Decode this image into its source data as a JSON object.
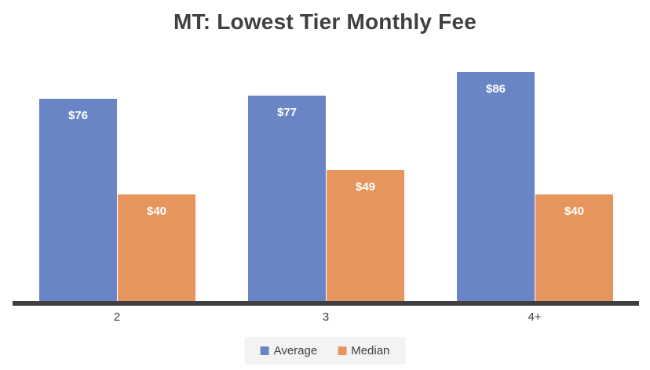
{
  "chart_data": {
    "type": "bar",
    "title": "MT: Lowest Tier Monthly Fee",
    "categories": [
      "2",
      "3",
      "4+"
    ],
    "series": [
      {
        "name": "Average",
        "color": "#6985C5",
        "values": [
          76,
          77,
          86
        ],
        "data_labels": [
          "$76",
          "$77",
          "$86"
        ]
      },
      {
        "name": "Median",
        "color": "#E6965C",
        "values": [
          40,
          49,
          40
        ],
        "data_labels": [
          "$40",
          "$49",
          "$40"
        ]
      }
    ],
    "ylim": [
      0,
      90
    ],
    "xlabel": "",
    "ylabel": "",
    "grid": false,
    "y_axis_visible": false,
    "legend_position": "bottom",
    "data_label_color": "#FFFFFF",
    "axis_line_color": "#3F3F3F",
    "text_color": "#404040",
    "legend_background": "#F3F3F3",
    "background": "#FFFFFF"
  }
}
